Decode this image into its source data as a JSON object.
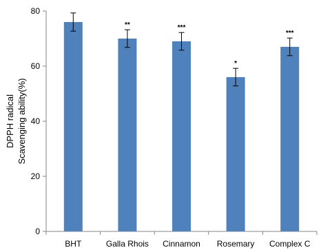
{
  "chart_data": {
    "type": "bar",
    "title": "",
    "xlabel": "",
    "ylabel_lines": [
      "DPPH radical",
      "Scavenging ability(%)"
    ],
    "ylim": [
      0,
      80
    ],
    "yticks": [
      0,
      20,
      40,
      60,
      80
    ],
    "categories": [
      "BHT",
      "Galla Rhois",
      "Cinnamon",
      "Rosemary",
      "Complex C"
    ],
    "values": [
      76,
      70,
      69,
      56,
      67
    ],
    "errors": [
      3.3,
      3.2,
      3.2,
      3.2,
      3.2
    ],
    "significance": [
      "",
      "**",
      "***",
      "*",
      "***"
    ],
    "bar_color": "#4F81BD",
    "axis_color": "#868686",
    "grid": false,
    "legend": "none"
  }
}
